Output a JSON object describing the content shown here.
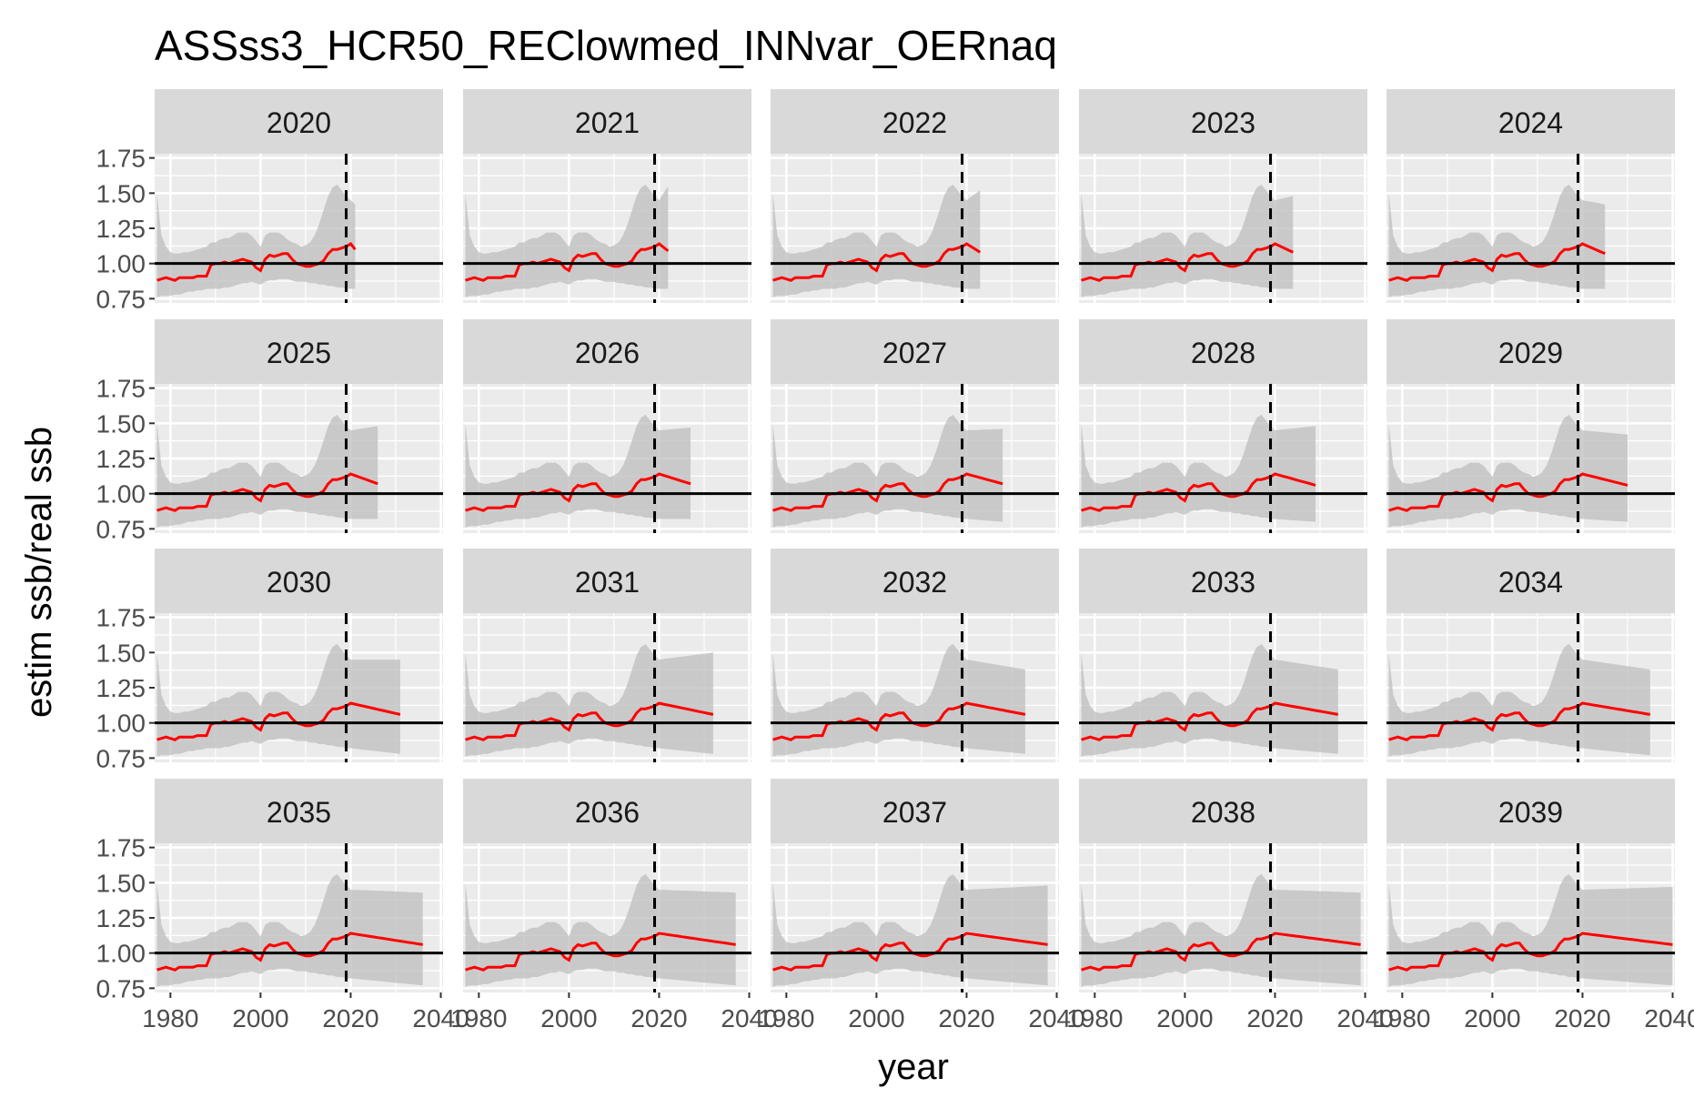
{
  "chart_data": {
    "type": "line",
    "title": "ASSss3_HCR50_REClowmed_INNvar_OERnaq",
    "xlabel": "year",
    "ylabel": "estim ssb/real ssb",
    "xlim": [
      1976.5,
      2040.5
    ],
    "ylim": [
      0.72,
      1.78
    ],
    "x_ticks": [
      1980,
      2000,
      2020,
      2040
    ],
    "x_tick_labels": [
      "1980",
      "2000",
      "2020",
      "2040"
    ],
    "y_ticks": [
      0.75,
      1.0,
      1.25,
      1.5,
      1.75
    ],
    "y_tick_labels": [
      "0.75",
      "1.00",
      "1.25",
      "1.50",
      "1.75"
    ],
    "grid": true,
    "reference_line_y": 1.0,
    "vline_year": 2019,
    "facet_ncol": 5,
    "colors": {
      "median_line": "#ff0000",
      "ribbon": "#bdbdbd",
      "panel_bg": "#ebebeb",
      "strip_bg": "#d9d9d9",
      "grid": "#ffffff",
      "reference": "#000000"
    },
    "base_year_start": 1977,
    "base_median": [
      0.88,
      0.89,
      0.9,
      0.89,
      0.88,
      0.9,
      0.9,
      0.9,
      0.9,
      0.91,
      0.91,
      0.91,
      0.99,
      1.0,
      1.0,
      1.01,
      1.0,
      1.01,
      1.02,
      1.03,
      1.02,
      1.01,
      0.97,
      0.95,
      1.03,
      1.06,
      1.05,
      1.06,
      1.07,
      1.07,
      1.03,
      1.0,
      0.99,
      0.98,
      0.98,
      0.99,
      1.0,
      1.02,
      1.07,
      1.1,
      1.1,
      1.11,
      1.12,
      1.14
    ],
    "base_lower": [
      0.76,
      0.77,
      0.77,
      0.77,
      0.78,
      0.78,
      0.79,
      0.8,
      0.8,
      0.81,
      0.81,
      0.82,
      0.82,
      0.82,
      0.82,
      0.83,
      0.83,
      0.84,
      0.85,
      0.86,
      0.86,
      0.87,
      0.86,
      0.85,
      0.87,
      0.88,
      0.88,
      0.89,
      0.89,
      0.89,
      0.88,
      0.87,
      0.87,
      0.87,
      0.86,
      0.86,
      0.85,
      0.85,
      0.84,
      0.84,
      0.83,
      0.83,
      0.82,
      0.82
    ],
    "base_upper": [
      1.5,
      1.2,
      1.12,
      1.08,
      1.07,
      1.07,
      1.08,
      1.08,
      1.09,
      1.1,
      1.11,
      1.12,
      1.15,
      1.15,
      1.17,
      1.18,
      1.18,
      1.2,
      1.22,
      1.22,
      1.22,
      1.2,
      1.16,
      1.12,
      1.2,
      1.22,
      1.22,
      1.22,
      1.2,
      1.17,
      1.15,
      1.14,
      1.12,
      1.13,
      1.15,
      1.2,
      1.28,
      1.38,
      1.48,
      1.54,
      1.56,
      1.52,
      1.48,
      1.45
    ],
    "panels": [
      {
        "label": "2020",
        "end_year": 2021,
        "proj_median_end": 1.1,
        "proj_upper_end": 1.42,
        "proj_lower_end": 0.82
      },
      {
        "label": "2021",
        "end_year": 2022,
        "proj_median_end": 1.09,
        "proj_upper_end": 1.55,
        "proj_lower_end": 0.82
      },
      {
        "label": "2022",
        "end_year": 2023,
        "proj_median_end": 1.08,
        "proj_upper_end": 1.52,
        "proj_lower_end": 0.82
      },
      {
        "label": "2023",
        "end_year": 2024,
        "proj_median_end": 1.08,
        "proj_upper_end": 1.48,
        "proj_lower_end": 0.82
      },
      {
        "label": "2024",
        "end_year": 2025,
        "proj_median_end": 1.07,
        "proj_upper_end": 1.42,
        "proj_lower_end": 0.82
      },
      {
        "label": "2025",
        "end_year": 2026,
        "proj_median_end": 1.07,
        "proj_upper_end": 1.48,
        "proj_lower_end": 0.82
      },
      {
        "label": "2026",
        "end_year": 2027,
        "proj_median_end": 1.07,
        "proj_upper_end": 1.47,
        "proj_lower_end": 0.82
      },
      {
        "label": "2027",
        "end_year": 2028,
        "proj_median_end": 1.07,
        "proj_upper_end": 1.46,
        "proj_lower_end": 0.8
      },
      {
        "label": "2028",
        "end_year": 2029,
        "proj_median_end": 1.06,
        "proj_upper_end": 1.48,
        "proj_lower_end": 0.8
      },
      {
        "label": "2029",
        "end_year": 2030,
        "proj_median_end": 1.06,
        "proj_upper_end": 1.42,
        "proj_lower_end": 0.8
      },
      {
        "label": "2030",
        "end_year": 2031,
        "proj_median_end": 1.06,
        "proj_upper_end": 1.45,
        "proj_lower_end": 0.78
      },
      {
        "label": "2031",
        "end_year": 2032,
        "proj_median_end": 1.06,
        "proj_upper_end": 1.5,
        "proj_lower_end": 0.78
      },
      {
        "label": "2032",
        "end_year": 2033,
        "proj_median_end": 1.06,
        "proj_upper_end": 1.38,
        "proj_lower_end": 0.78
      },
      {
        "label": "2033",
        "end_year": 2034,
        "proj_median_end": 1.06,
        "proj_upper_end": 1.38,
        "proj_lower_end": 0.78
      },
      {
        "label": "2034",
        "end_year": 2035,
        "proj_median_end": 1.06,
        "proj_upper_end": 1.38,
        "proj_lower_end": 0.77
      },
      {
        "label": "2035",
        "end_year": 2036,
        "proj_median_end": 1.06,
        "proj_upper_end": 1.43,
        "proj_lower_end": 0.77
      },
      {
        "label": "2036",
        "end_year": 2037,
        "proj_median_end": 1.06,
        "proj_upper_end": 1.43,
        "proj_lower_end": 0.77
      },
      {
        "label": "2037",
        "end_year": 2038,
        "proj_median_end": 1.06,
        "proj_upper_end": 1.48,
        "proj_lower_end": 0.77
      },
      {
        "label": "2038",
        "end_year": 2039,
        "proj_median_end": 1.06,
        "proj_upper_end": 1.43,
        "proj_lower_end": 0.77
      },
      {
        "label": "2039",
        "end_year": 2040,
        "proj_median_end": 1.06,
        "proj_upper_end": 1.47,
        "proj_lower_end": 0.77
      }
    ]
  }
}
